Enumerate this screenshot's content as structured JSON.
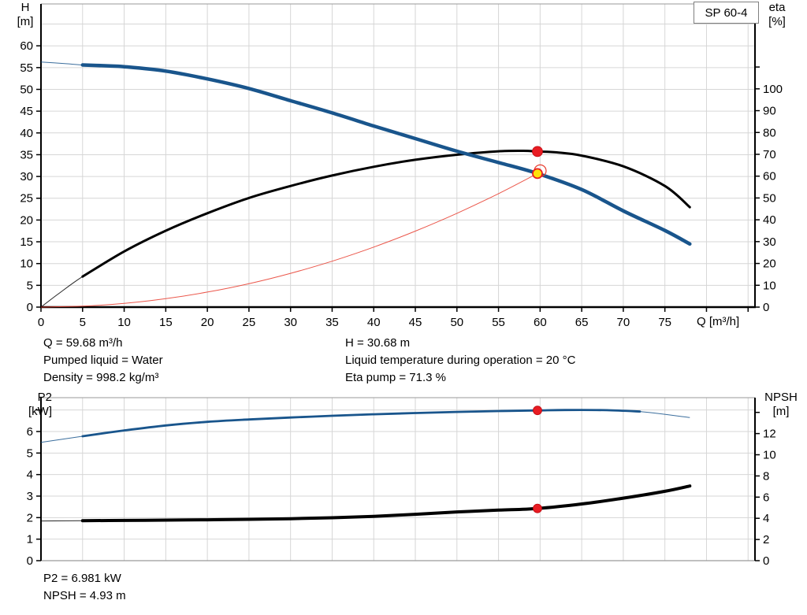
{
  "model_label": "SP 60-4",
  "colors": {
    "curve_blue": "#19558c",
    "curve_black": "#000000",
    "curve_red": "#e8392b",
    "dot_red": "#e81c23",
    "dot_yellow": "#ffe20a",
    "grid": "#d6d6d6",
    "frame_light": "#9a9a9a",
    "axis": "#000000"
  },
  "info_panel_top": {
    "left": [
      "Q = 59.68 m³/h",
      "Pumped liquid = Water",
      "Density = 998.2 kg/m³"
    ],
    "right": [
      "H = 30.68 m",
      "Liquid temperature during operation = 20 °C",
      "Eta pump = 71.3 %"
    ]
  },
  "info_panel_bottom": [
    "P2 = 6.981 kW",
    "NPSH = 4.93 m"
  ],
  "chart_data": [
    {
      "id": "qh-eta-chart",
      "type": "line",
      "title": "SP 60-4",
      "x_axis": {
        "label": "Q [m³/h]",
        "min": 0,
        "max": 85.83,
        "tick_step": 5,
        "tick_max": 85,
        "label_max": 75,
        "show_ticks": true
      },
      "left_axis": {
        "label": "H",
        "unit": "[m]",
        "min": 0,
        "max": 69.62,
        "tick_step": 5,
        "tick_max": 60,
        "label_max": 60,
        "grid_step": 5,
        "grid_max": 65
      },
      "right_axis": {
        "label": "eta",
        "unit": "[%]",
        "min": 0,
        "max": 138.9,
        "tick_step": 10,
        "tick_max": 110,
        "label_max": 100
      },
      "series": [
        {
          "name": "efficiency-curve",
          "axis": "right",
          "color_key": "curve_black",
          "width": 3,
          "thin_until": 5.5,
          "points": [
            [
              0,
              0
            ],
            [
              2,
              5.8
            ],
            [
              5,
              14
            ],
            [
              10,
              25.5
            ],
            [
              15,
              35
            ],
            [
              20,
              43
            ],
            [
              25,
              50
            ],
            [
              30,
              55.5
            ],
            [
              35,
              60.3
            ],
            [
              40,
              64.3
            ],
            [
              45,
              67.5
            ],
            [
              50,
              69.8
            ],
            [
              55,
              71.4
            ],
            [
              58,
              71.6
            ],
            [
              59.68,
              71.3
            ],
            [
              62,
              70.9
            ],
            [
              65,
              69.4
            ],
            [
              70,
              64.5
            ],
            [
              75,
              55.5
            ],
            [
              78,
              45.8
            ]
          ]
        },
        {
          "name": "head-curve",
          "axis": "left",
          "color_key": "curve_blue",
          "width": 4.5,
          "thin_until": 5.5,
          "points": [
            [
              0,
              56.3
            ],
            [
              3,
              55.9
            ],
            [
              5,
              55.6
            ],
            [
              8,
              55.4
            ],
            [
              10,
              55.2
            ],
            [
              15,
              54.2
            ],
            [
              20,
              52.4
            ],
            [
              25,
              50.2
            ],
            [
              30,
              47.4
            ],
            [
              35,
              44.6
            ],
            [
              40,
              41.6
            ],
            [
              45,
              38.7
            ],
            [
              50,
              35.8
            ],
            [
              55,
              33.2
            ],
            [
              59.68,
              30.68
            ],
            [
              65,
              27.0
            ],
            [
              70,
              22.1
            ],
            [
              75,
              17.6
            ],
            [
              78,
              14.5
            ]
          ]
        },
        {
          "name": "system-curve",
          "axis": "left",
          "color_key": "curve_red",
          "width": 1.1,
          "thin_until": 0,
          "points": [
            [
              0,
              0
            ],
            [
              5,
              0.22
            ],
            [
              10,
              0.86
            ],
            [
              15,
              1.94
            ],
            [
              20,
              3.45
            ],
            [
              25,
              5.38
            ],
            [
              30,
              7.75
            ],
            [
              35,
              10.55
            ],
            [
              40,
              13.78
            ],
            [
              45,
              17.45
            ],
            [
              50,
              21.54
            ],
            [
              55,
              26.06
            ],
            [
              59.68,
              30.68
            ]
          ]
        }
      ],
      "markers": [
        {
          "name": "duty-point-eta",
          "q": 59.68,
          "value": 71.3,
          "axis": "right",
          "style": "red-dot",
          "r": 6.5
        },
        {
          "name": "duty-point-head",
          "q": 59.68,
          "value": 30.68,
          "axis": "left",
          "style": "yellow-target",
          "r": 6
        }
      ]
    },
    {
      "id": "p2-npsh-chart",
      "type": "line",
      "title": "",
      "x_axis": {
        "label": "",
        "min": 0,
        "max": 85.83,
        "tick_step": 5,
        "tick_max": 85,
        "label_max": -1,
        "show_ticks": false
      },
      "left_axis": {
        "label": "P2",
        "unit": "[kW]",
        "min": 0,
        "max": 7.573,
        "tick_step": 1,
        "tick_max": 7,
        "label_max": 6,
        "grid_step": 1,
        "grid_max": 7
      },
      "right_axis": {
        "label": "NPSH",
        "unit": "[m]",
        "min": 0,
        "max": 15.39,
        "tick_step": 2,
        "tick_max": 14,
        "label_max": 12
      },
      "series": [
        {
          "name": "power-curve",
          "axis": "left",
          "color_key": "curve_blue",
          "width": 2.8,
          "thin_until": 5,
          "thin_from": 72.5,
          "points": [
            [
              0,
              5.5
            ],
            [
              5,
              5.78
            ],
            [
              10,
              6.05
            ],
            [
              15,
              6.28
            ],
            [
              20,
              6.45
            ],
            [
              25,
              6.56
            ],
            [
              30,
              6.65
            ],
            [
              35,
              6.73
            ],
            [
              40,
              6.8
            ],
            [
              45,
              6.86
            ],
            [
              50,
              6.91
            ],
            [
              55,
              6.95
            ],
            [
              59.68,
              6.981
            ],
            [
              63,
              7.0
            ],
            [
              68,
              6.99
            ],
            [
              72,
              6.93
            ],
            [
              78,
              6.65
            ]
          ]
        },
        {
          "name": "npsh-curve",
          "axis": "right",
          "color_key": "curve_black",
          "width": 4,
          "thin_until": 5,
          "points": [
            [
              0,
              3.75
            ],
            [
              5,
              3.78
            ],
            [
              10,
              3.8
            ],
            [
              15,
              3.83
            ],
            [
              20,
              3.86
            ],
            [
              25,
              3.9
            ],
            [
              30,
              3.96
            ],
            [
              35,
              4.05
            ],
            [
              40,
              4.18
            ],
            [
              45,
              4.38
            ],
            [
              50,
              4.6
            ],
            [
              55,
              4.77
            ],
            [
              59.68,
              4.93
            ],
            [
              65,
              5.35
            ],
            [
              70,
              5.9
            ],
            [
              75,
              6.55
            ],
            [
              78,
              7.05
            ]
          ]
        }
      ],
      "markers": [
        {
          "name": "duty-point-p2",
          "q": 59.68,
          "value": 6.981,
          "axis": "left",
          "style": "red-dot",
          "r": 5.5
        },
        {
          "name": "duty-point-npsh",
          "q": 59.68,
          "value": 4.93,
          "axis": "right",
          "style": "red-dot",
          "r": 5.5
        }
      ]
    }
  ]
}
